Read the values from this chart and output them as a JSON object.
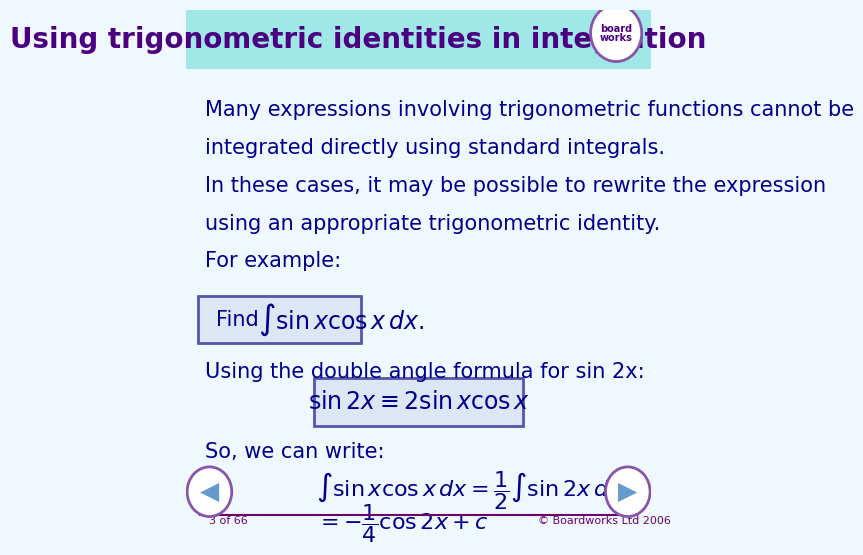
{
  "title": "Using trigonometric identities in integration",
  "title_bg_color": "#a0e8e8",
  "title_text_color": "#4b0082",
  "body_bg_color": "#f0f8ff",
  "body_text_color": "#00008b",
  "footer_text_color": "#6b006b",
  "line1": "Many expressions involving trigonometric functions cannot be",
  "line2": "integrated directly using standard integrals.",
  "line3": "In these cases, it may be possible to rewrite the expression",
  "line4": "using an appropriate trigonometric identity.",
  "line5": "For example:",
  "find_label": "Find",
  "find_formula": "$\\int \\sin x \\cos x\\, dx.$",
  "double_angle_text": "Using the double angle formula for sin 2x:",
  "identity_formula": "$\\sin 2x \\equiv 2\\sin x \\cos x$",
  "so_text": "So, we can write:",
  "eq1": "$\\int \\sin x \\cos x\\, dx = \\dfrac{1}{2}\\int \\sin 2x\\, dx$",
  "eq2": "$= -\\dfrac{1}{4}\\cos 2x + c$",
  "footer_left": "3 of 66",
  "footer_right": "© Boardworks Ltd 2006",
  "box_fill_color": "#dce6f5",
  "box_edge_color": "#5555aa",
  "title_font_size": 20,
  "body_font_size": 15,
  "formula_font_size": 16
}
